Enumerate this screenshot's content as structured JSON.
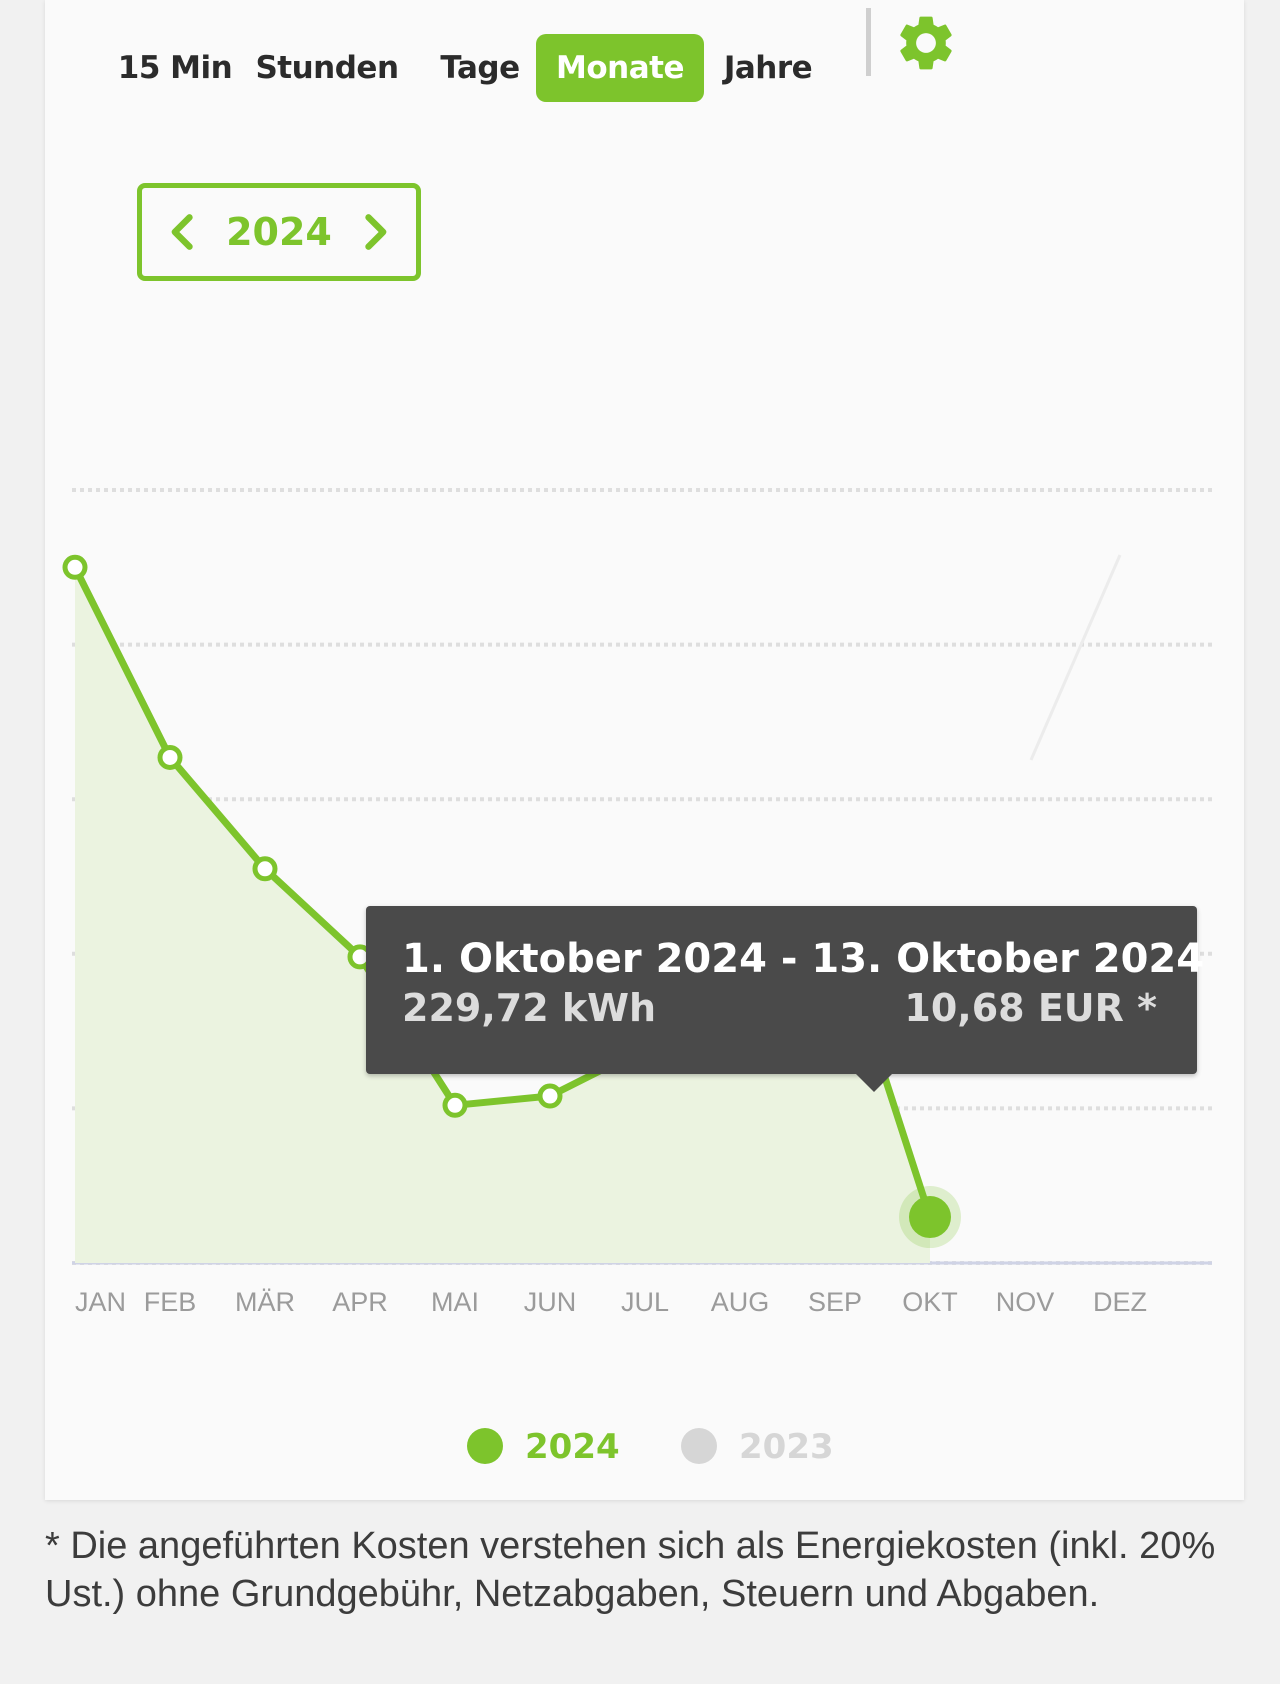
{
  "tabs": [
    {
      "label": "15 Min",
      "active": false
    },
    {
      "label": "Stunden",
      "active": false
    },
    {
      "label": "Tage",
      "active": false
    },
    {
      "label": "Monate",
      "active": true
    },
    {
      "label": "Jahre",
      "active": false
    }
  ],
  "settings_icon": "gear-icon",
  "year_nav": {
    "year": "2024",
    "prev_icon": "chevron-left-icon",
    "next_icon": "chevron-right-icon"
  },
  "colors": {
    "accent": "#7dc42c",
    "series_2023": "#d6d6d6",
    "tooltip_bg": "#4a4a4a",
    "area_fill": "#ebf3e0"
  },
  "tooltip": {
    "title": "1. Oktober 2024 - 13. Oktober 2024",
    "energy": "229,72 kWh",
    "cost": "10,68 EUR *"
  },
  "legend": [
    {
      "label": "2024",
      "color": "#7dc42c"
    },
    {
      "label": "2023",
      "color": "#d6d6d6"
    }
  ],
  "chart_data": {
    "type": "area",
    "categories": [
      "JAN",
      "FEB",
      "MÄR",
      "APR",
      "MAI",
      "JUN",
      "JUL",
      "AUG",
      "SEP",
      "OKT",
      "NOV",
      "DEZ"
    ],
    "series": [
      {
        "name": "2024",
        "values": [
          650,
          527,
          455,
          398,
          302,
          308,
          339,
          357,
          420,
          229.72,
          null,
          null
        ]
      }
    ],
    "ylim": [
      200,
      700
    ],
    "grid": true,
    "selected_point": "OKT",
    "legend_position": "bottom"
  },
  "footnote": "* Die angeführten Kosten verstehen sich als Energiekosten (inkl. 20% Ust.) ohne Grundgebühr, Netzabgaben, Steuern und Abgaben."
}
